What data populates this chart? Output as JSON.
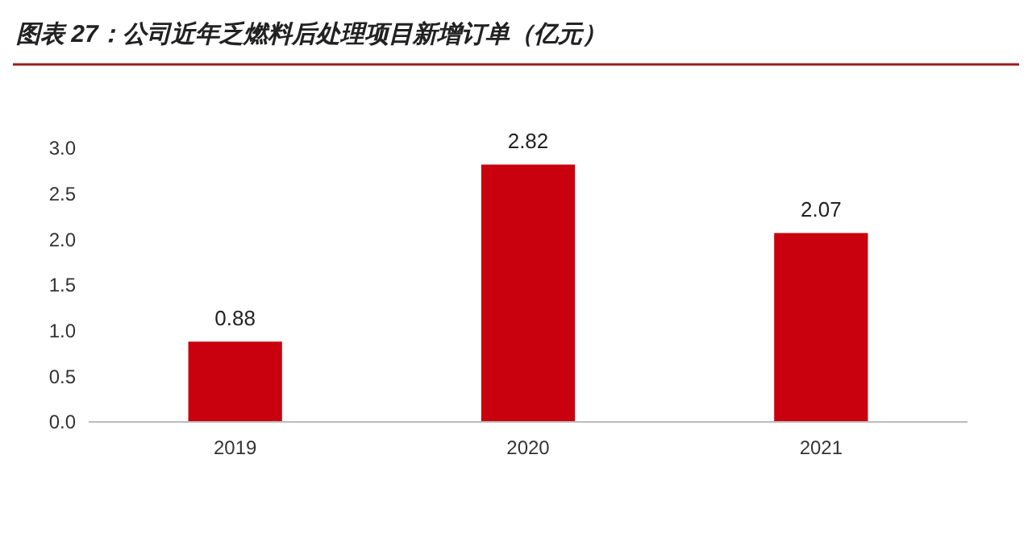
{
  "chart_data": {
    "type": "bar",
    "title": "图表 27：公司近年乏燃料后处理项目新增订单（亿元）",
    "categories": [
      "2019",
      "2020",
      "2021"
    ],
    "values": [
      0.88,
      2.82,
      2.07
    ],
    "color": "#c9000d",
    "ylim": [
      0,
      3
    ],
    "yticks": [
      {
        "value": 0,
        "label": "0.0"
      },
      {
        "value": 0.5,
        "label": "0.5"
      },
      {
        "value": 1,
        "label": "1.0"
      },
      {
        "value": 1.5,
        "label": "1.5"
      },
      {
        "value": 2,
        "label": "2.0"
      },
      {
        "value": 2.5,
        "label": "2.5"
      },
      {
        "value": 3,
        "label": "3.0"
      }
    ],
    "data_labels": true,
    "grid": false
  }
}
